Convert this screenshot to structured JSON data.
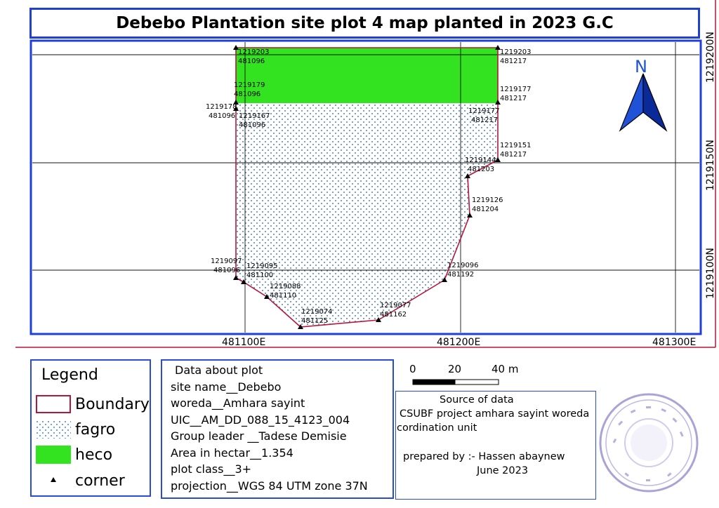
{
  "title": "Debebo Plantation site plot 4 map planted in 2023 G.C",
  "map": {
    "north_label": "N",
    "grid_labels_x": [
      "481100E",
      "481200E",
      "481300E"
    ],
    "grid_labels_y": [
      "1219200N",
      "1219150N",
      "1219100N"
    ],
    "colors": {
      "frame": "#1f3fd6",
      "boundary": "#b5173a",
      "heco_fill": "#33e31f",
      "fagro_dots": "#4f86c4",
      "grid": "#111111",
      "north_arrow": "#1f52d6"
    },
    "corners": [
      {
        "n": "1219203",
        "e": "481096"
      },
      {
        "n": "1219203",
        "e": "481217"
      },
      {
        "n": "1219179",
        "e": "481096"
      },
      {
        "n": "1219177",
        "e": "481217"
      },
      {
        "n": "1219178",
        "e": "481096"
      },
      {
        "n": "1219167",
        "e": "481096"
      },
      {
        "n": "1219177",
        "e": "481217"
      },
      {
        "n": "1219151",
        "e": "481217"
      },
      {
        "n": "1219144",
        "e": "481203"
      },
      {
        "n": "1219126",
        "e": "481204"
      },
      {
        "n": "1219097",
        "e": "481096"
      },
      {
        "n": "1219095",
        "e": "481100"
      },
      {
        "n": "1219096",
        "e": "481192"
      },
      {
        "n": "1219088",
        "e": "481110"
      },
      {
        "n": "1219077",
        "e": "481162"
      },
      {
        "n": "1219074",
        "e": "481125"
      }
    ]
  },
  "scale_bar": {
    "labels": [
      "0",
      "20",
      "40 m"
    ]
  },
  "legend": {
    "title": "Legend",
    "items": [
      {
        "label": "Boundary",
        "symbol": "boundary"
      },
      {
        "label": "fagro",
        "symbol": "fagro"
      },
      {
        "label": "heco",
        "symbol": "heco"
      },
      {
        "label": "corner",
        "symbol": "corner"
      }
    ]
  },
  "plot_info": {
    "heading": "Data about plot",
    "lines": [
      "site name__Debebo",
      "woreda__Amhara sayint",
      "UIC__AM_DD_088_15_4123_004",
      "Group leader __Tadese Demisie",
      "Area in hectar__1.354",
      "plot class__3+",
      "projection__WGS 84 UTM zone 37N"
    ]
  },
  "source": {
    "line1": "Source of data",
    "line2": "CSUBF project amhara sayint woreda",
    "line3": "cordination unit",
    "line4": "prepared by :- Hassen abaynew",
    "line5": "June 2023"
  },
  "stamp": {
    "text": "በአማራ ብሔራዊ ክልላዊ መንግሥት ሳይንት ወረዳ"
  }
}
